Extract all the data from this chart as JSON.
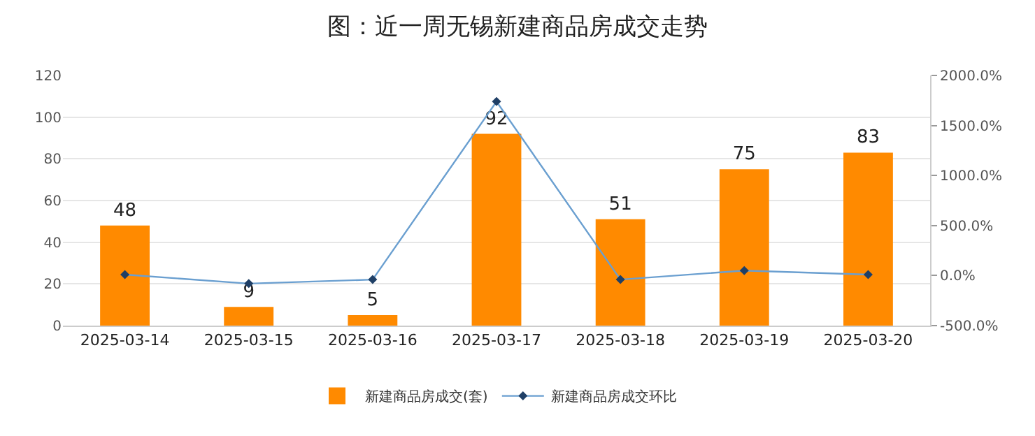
{
  "chart_data": {
    "type": "bar",
    "title": "图：近一周无锡新建商品房成交走势",
    "categories": [
      "2025-03-14",
      "2025-03-15",
      "2025-03-16",
      "2025-03-17",
      "2025-03-18",
      "2025-03-19",
      "2025-03-20"
    ],
    "series": [
      {
        "name": "新建商品房成交(套)",
        "color": "#ff8a00",
        "values": [
          48,
          9,
          5,
          92,
          51,
          75,
          83
        ],
        "data_labels": true
      },
      {
        "name": "新建商品房成交环比",
        "type": "line",
        "axis": "y2",
        "color": "#6a9fd0",
        "marker": "diamond",
        "values": [
          10,
          -80,
          -40,
          1740,
          -40,
          50,
          10
        ]
      }
    ],
    "ylim": [
      0,
      120
    ],
    "yticks": [
      0,
      20,
      40,
      60,
      80,
      100,
      120
    ],
    "y2lim": [
      -500,
      2000
    ],
    "y2ticks": [
      {
        "value": -500,
        "label": "-500.0%"
      },
      {
        "value": 0,
        "label": "0.0%"
      },
      {
        "value": 500,
        "label": "500.0%"
      },
      {
        "value": 1000,
        "label": "1000.0%"
      },
      {
        "value": 1500,
        "label": "1500.0%"
      },
      {
        "value": 2000,
        "label": "2000.0%"
      }
    ],
    "grid": "y",
    "legend": "bottom"
  }
}
